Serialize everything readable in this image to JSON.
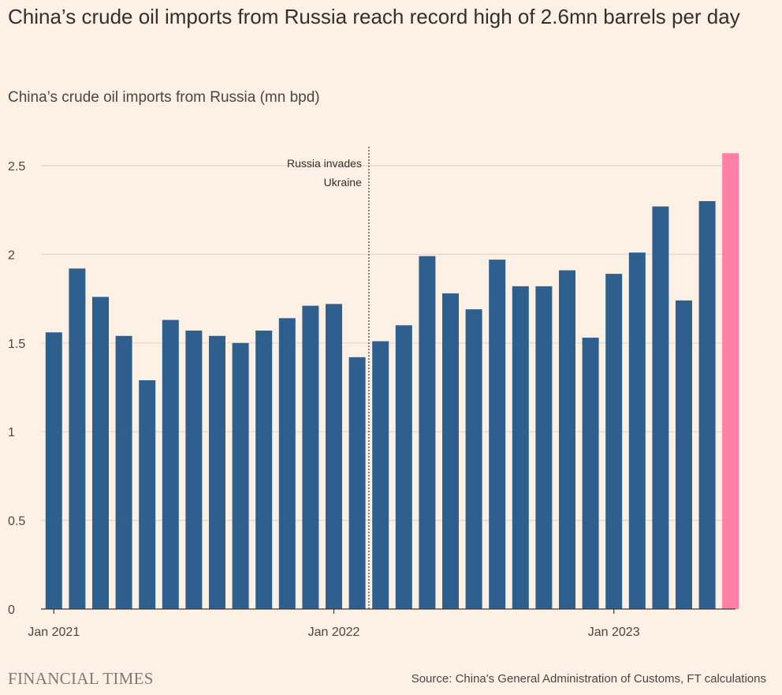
{
  "title": "China’s crude oil imports from Russia reach record high of 2.6mn barrels per day",
  "subtitle": "China’s crude oil imports from Russia (mn bpd)",
  "footer": {
    "logo": "FINANCIAL TIMES",
    "source": "Source: China's General Administration of Customs, FT calculations"
  },
  "colors": {
    "bar": "#2e5f8e",
    "highlight": "#ff7fa6",
    "grid": "#e3d6ca",
    "text": "#4a4642"
  },
  "chart_data": {
    "type": "bar",
    "title": "China’s crude oil imports from Russia reach record high of 2.6mn barrels per day",
    "ylabel": "China’s crude oil imports from Russia (mn bpd)",
    "xlabel": "",
    "ylim": [
      0,
      2.6
    ],
    "yticks": [
      0,
      0.5,
      1,
      1.5,
      2,
      2.5
    ],
    "ytick_labels": [
      "0",
      "0.5",
      "1",
      "1.5",
      "2",
      "2.5"
    ],
    "grid": true,
    "categories": [
      "Jan 2021",
      "Feb 2021",
      "Mar 2021",
      "Apr 2021",
      "May 2021",
      "Jun 2021",
      "Jul 2021",
      "Aug 2021",
      "Sep 2021",
      "Oct 2021",
      "Nov 2021",
      "Dec 2021",
      "Jan 2022",
      "Feb 2022",
      "Mar 2022",
      "Apr 2022",
      "May 2022",
      "Jun 2022",
      "Jul 2022",
      "Aug 2022",
      "Sep 2022",
      "Oct 2022",
      "Nov 2022",
      "Dec 2022",
      "Jan 2023",
      "Feb 2023",
      "Mar 2023",
      "Apr 2023",
      "May 2023",
      "Jun 2023"
    ],
    "values": [
      1.56,
      1.92,
      1.76,
      1.54,
      1.29,
      1.63,
      1.57,
      1.54,
      1.5,
      1.57,
      1.64,
      1.71,
      1.72,
      1.42,
      1.51,
      1.6,
      1.99,
      1.78,
      1.69,
      1.97,
      1.82,
      1.82,
      1.91,
      1.53,
      1.89,
      2.01,
      2.27,
      1.74,
      2.3,
      2.57
    ],
    "highlight_index": 29,
    "xtick_labels": [
      {
        "index": 0,
        "label": "Jan 2021"
      },
      {
        "index": 12,
        "label": "Jan 2022"
      },
      {
        "index": 24,
        "label": "Jan 2023"
      }
    ],
    "annotation": {
      "after_index": 13,
      "lines": [
        "Russia invades",
        "Ukraine"
      ]
    }
  }
}
